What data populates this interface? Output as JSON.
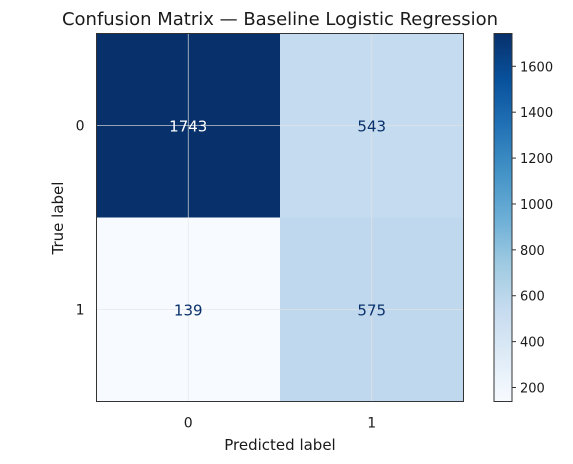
{
  "chart_data": {
    "type": "heatmap",
    "title": "Confusion Matrix — Baseline Logistic Regression",
    "xlabel": "Predicted label",
    "ylabel": "True label",
    "x_categories": [
      "0",
      "1"
    ],
    "y_categories": [
      "0",
      "1"
    ],
    "values": [
      [
        1743,
        543
      ],
      [
        139,
        575
      ]
    ],
    "colormap": "Blues",
    "color_range": [
      139,
      1743
    ],
    "colorbar_ticks": [
      200,
      400,
      600,
      800,
      1000,
      1200,
      1400,
      1600
    ],
    "grid": true
  }
}
